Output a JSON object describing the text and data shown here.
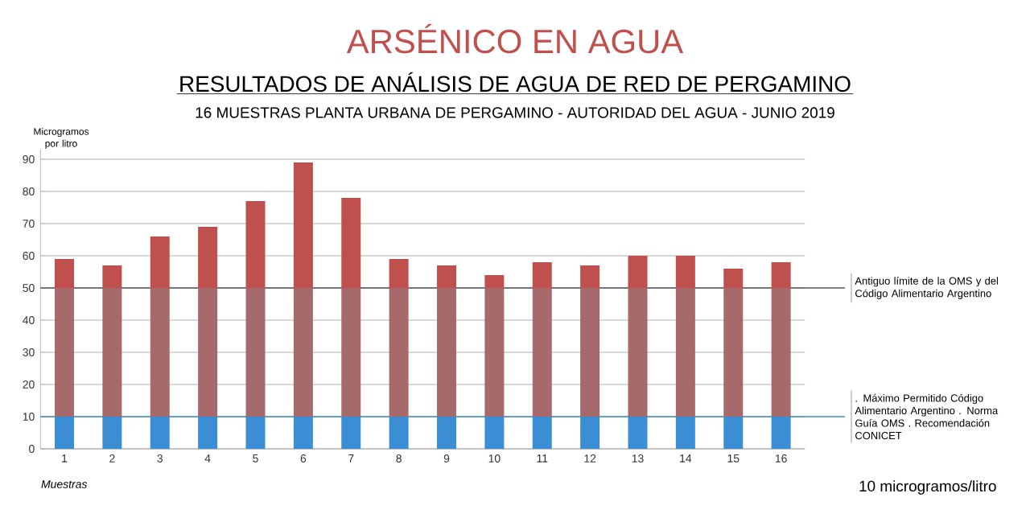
{
  "chart_data": {
    "type": "bar",
    "title": "ARSÉNICO EN AGUA",
    "subtitle": "RESULTADOS DE ANÁLISIS DE AGUA DE RED DE PERGAMINO",
    "annotations": [
      "16 MUESTRAS PLANTA URBANA DE PERGAMINO - AUTORIDAD DEL AGUA - JUNIO 2019",
      "10 microgramos/litro"
    ],
    "xlabel": "Muestras",
    "ylabel": "Microgramos por litro",
    "categories": [
      "1",
      "2",
      "3",
      "4",
      "5",
      "6",
      "7",
      "8",
      "9",
      "10",
      "11",
      "12",
      "13",
      "14",
      "15",
      "16"
    ],
    "stacked": true,
    "series": [
      {
        "color": "#3b8ed3",
        "values": [
          10,
          10,
          10,
          10,
          10,
          10,
          10,
          10,
          10,
          10,
          10,
          10,
          10,
          10,
          10,
          10
        ]
      },
      {
        "color": "#a66a6c",
        "values": [
          40,
          40,
          40,
          40,
          40,
          40,
          40,
          40,
          40,
          40,
          40,
          40,
          40,
          40,
          40,
          40
        ]
      },
      {
        "color": "#c0504d",
        "values": [
          9,
          7,
          16,
          19,
          27,
          39,
          28,
          9,
          7,
          4,
          8,
          7,
          10,
          10,
          6,
          8
        ]
      }
    ],
    "ylim": [
      0,
      93
    ],
    "yticks": [
      0,
      10,
      20,
      30,
      40,
      50,
      60,
      70,
      80,
      90
    ],
    "grid": "y",
    "ref_lines": [
      {
        "axis": "y",
        "value": 50,
        "label": "Antiguo límite de la OMS y del Código Alimentario Argentino",
        "color": "#555555"
      },
      {
        "axis": "y",
        "value": 10,
        "label": ". Máximo Permitido Código Alimentario Argentino . Norma Guía OMS . Recomendación CONICET",
        "color": "#3b8ed3"
      }
    ]
  }
}
